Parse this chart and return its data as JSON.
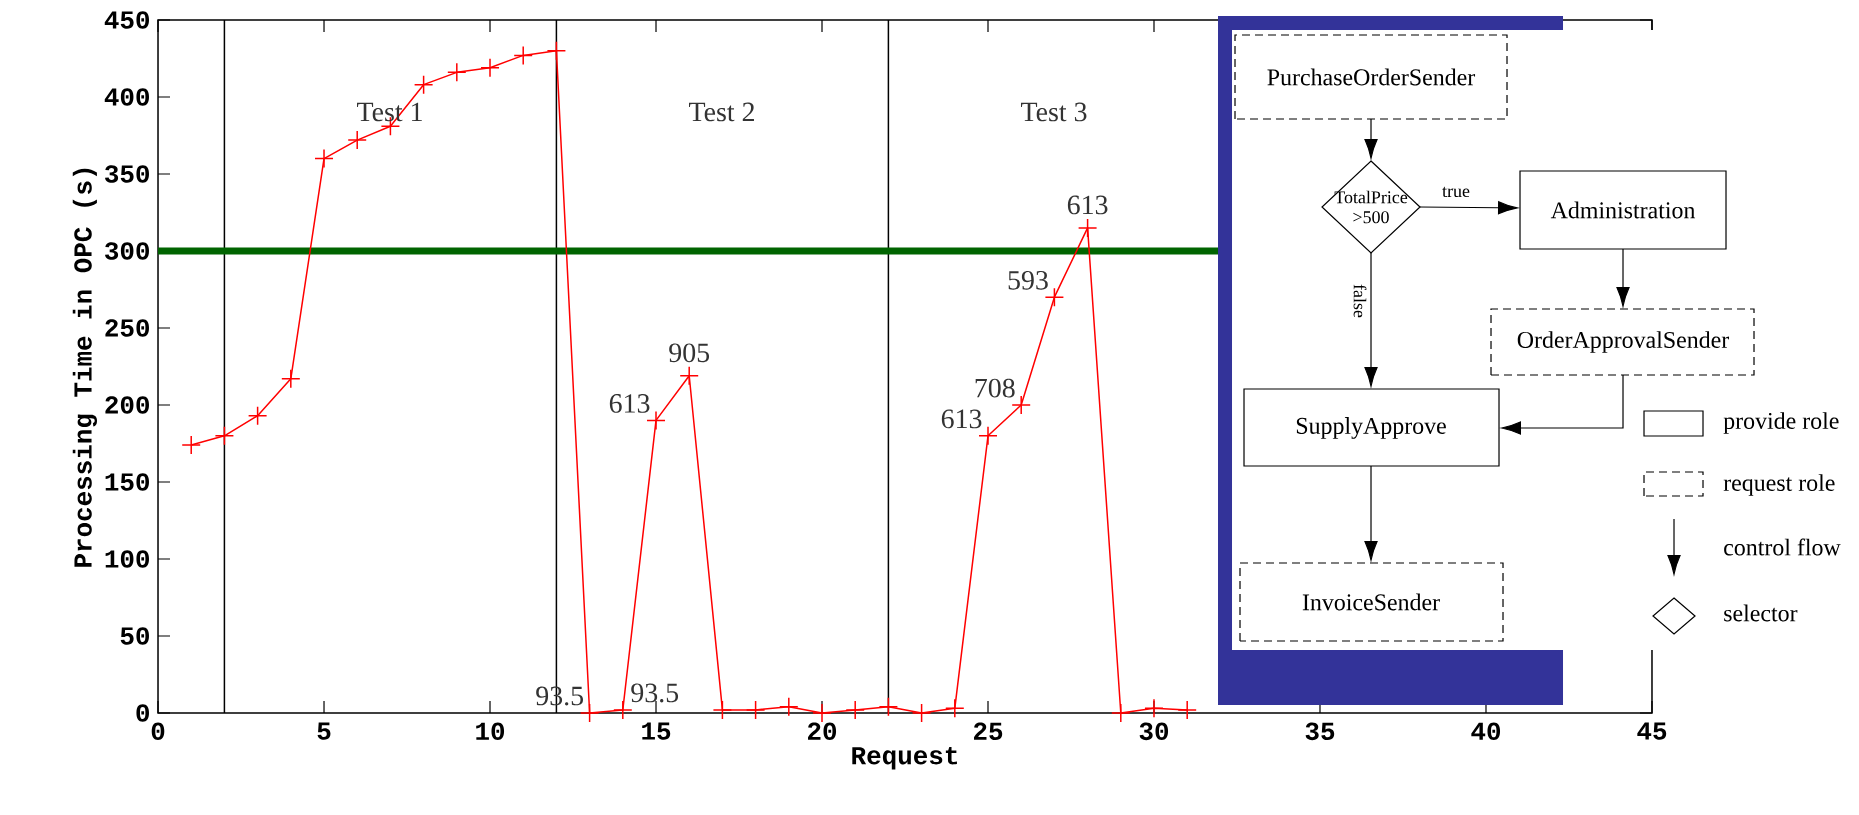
{
  "chart_data": {
    "type": "line",
    "xlabel": "Request",
    "ylabel": "Processing Time in OPC (s)",
    "xlim": [
      0,
      45
    ],
    "xticks": [
      0,
      5,
      10,
      15,
      20,
      25,
      30,
      35,
      40,
      45
    ],
    "ylim": [
      0,
      450
    ],
    "yticks": [
      0,
      50,
      100,
      150,
      200,
      250,
      300,
      350,
      400,
      450
    ],
    "marker": "cross",
    "series": [
      {
        "color": "#ff0000",
        "x": [
          1,
          2,
          3,
          4,
          5,
          6,
          7,
          8,
          9,
          10,
          11,
          12,
          13,
          14,
          15,
          16,
          17,
          18,
          19,
          20,
          21,
          22,
          23,
          24,
          25,
          26,
          27,
          28,
          29,
          30,
          31
        ],
        "values": [
          174,
          180,
          193,
          217,
          360,
          372,
          381,
          408,
          416,
          419,
          427,
          430,
          0,
          2,
          190,
          219,
          2,
          2,
          4,
          0,
          2,
          4,
          0,
          3,
          180,
          200,
          270,
          315,
          0,
          3,
          2
        ]
      }
    ],
    "ref_lines": [
      {
        "axis": "x",
        "value": 2,
        "color": "#000000"
      },
      {
        "axis": "x",
        "value": 12,
        "color": "#000000"
      },
      {
        "axis": "x",
        "value": 22,
        "color": "#000000"
      },
      {
        "axis": "y",
        "value": 300,
        "color": "#006400"
      }
    ],
    "annotations": [
      {
        "text": "93.5",
        "x": 13,
        "y": 0
      },
      {
        "text": "93.5",
        "x": 14,
        "y": 2
      },
      {
        "text": "613",
        "x": 15,
        "y": 190
      },
      {
        "text": "905",
        "x": 16,
        "y": 219
      },
      {
        "text": "613",
        "x": 25,
        "y": 180
      },
      {
        "text": "708",
        "x": 26,
        "y": 200
      },
      {
        "text": "593",
        "x": 27,
        "y": 270
      },
      {
        "text": "613",
        "x": 28,
        "y": 315
      },
      "Test 1",
      "Test 2",
      "Test 3",
      "PurchaseOrderSender",
      "TotalPrice >500",
      "true",
      "Administration",
      "false",
      "OrderApprovalSender",
      "SupplyApprove",
      "InvoiceSender",
      "provide role",
      "request role",
      "control flow",
      "selector"
    ]
  }
}
